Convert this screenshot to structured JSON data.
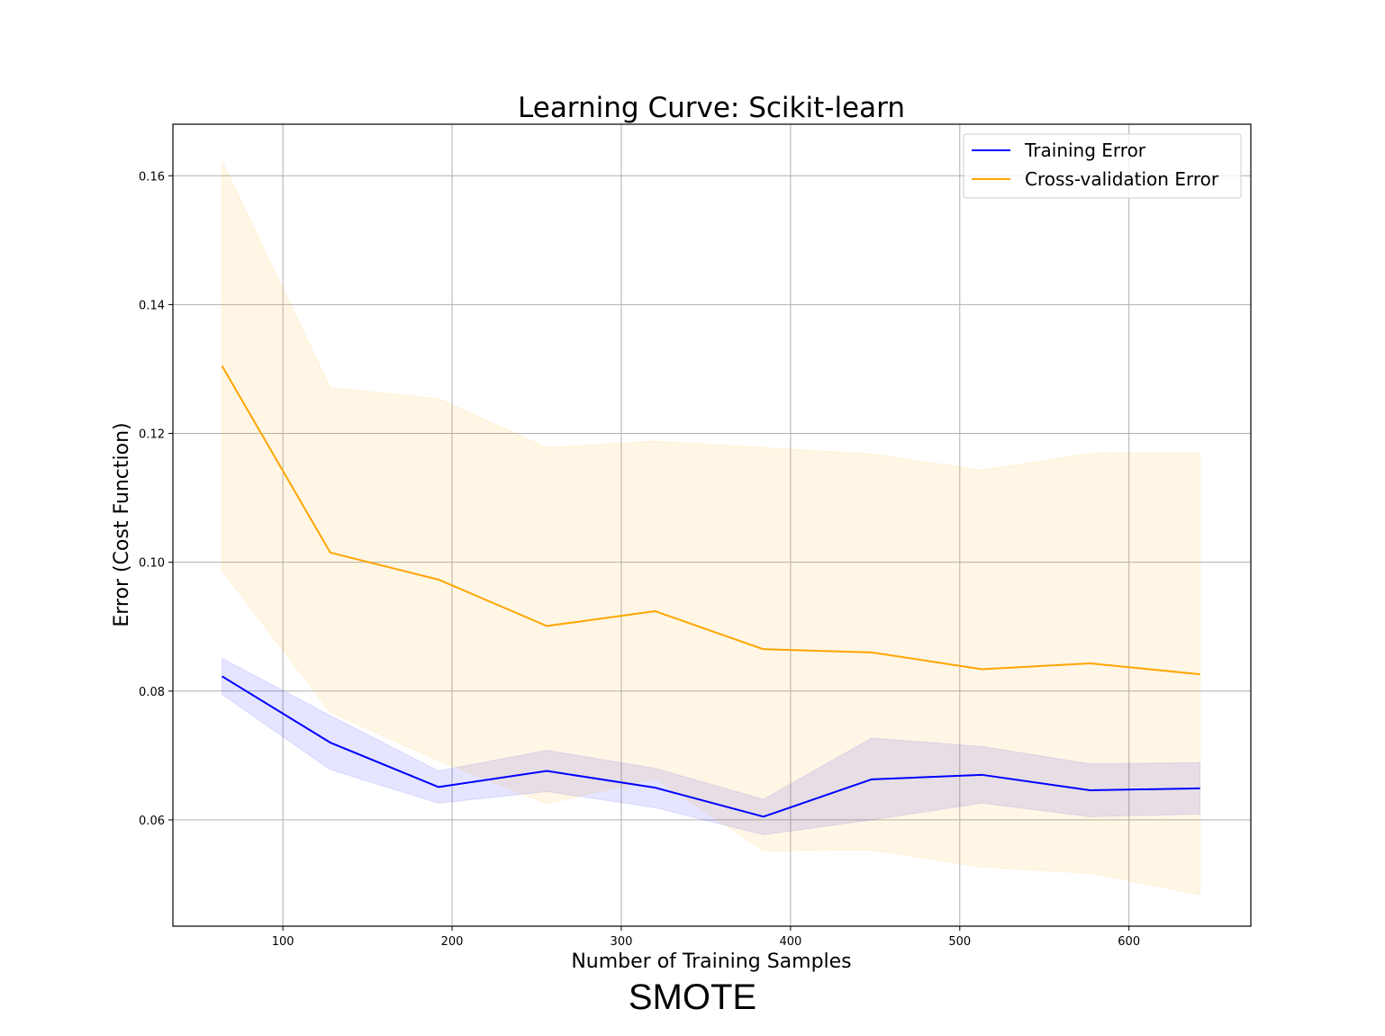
{
  "chart_data": {
    "type": "line",
    "title": "Learning Curve: Scikit-learn",
    "xlabel": "Number of Training Samples",
    "ylabel": "Error (Cost Function)",
    "xlim": [
      35,
      672
    ],
    "ylim": [
      0.0435,
      0.168
    ],
    "xticks": [
      100,
      200,
      300,
      400,
      500,
      600
    ],
    "xtick_labels": [
      "100",
      "200",
      "300",
      "400",
      "500",
      "600"
    ],
    "yticks": [
      0.06,
      0.08,
      0.1,
      0.12,
      0.14,
      0.16
    ],
    "ytick_labels": [
      "0.06",
      "0.08",
      "0.10",
      "0.12",
      "0.14",
      "0.16"
    ],
    "grid": true,
    "legend_position": "top-right",
    "x": [
      64,
      128,
      192,
      256,
      320,
      384,
      448,
      513,
      577,
      642
    ],
    "series": [
      {
        "name": "Training Error",
        "color": "#0000ff",
        "band_color": "#0000ff",
        "values": [
          0.0823,
          0.072,
          0.0651,
          0.0676,
          0.065,
          0.0605,
          0.0663,
          0.067,
          0.0646,
          0.0649
        ],
        "lower": [
          0.0795,
          0.0678,
          0.0626,
          0.0644,
          0.0619,
          0.0577,
          0.06,
          0.0626,
          0.0605,
          0.0609
        ],
        "upper": [
          0.0851,
          0.0762,
          0.0676,
          0.0708,
          0.068,
          0.0632,
          0.0727,
          0.0714,
          0.0687,
          0.0689
        ]
      },
      {
        "name": "Cross-validation Error",
        "color": "#ffa500",
        "band_color": "#ffa500",
        "values": [
          0.1305,
          0.1015,
          0.0973,
          0.0901,
          0.0924,
          0.0865,
          0.086,
          0.0834,
          0.0843,
          0.0826
        ],
        "lower": [
          0.0987,
          0.0767,
          0.0692,
          0.0625,
          0.0664,
          0.0552,
          0.0553,
          0.0527,
          0.0517,
          0.0484
        ],
        "upper": [
          0.1623,
          0.1271,
          0.1254,
          0.1178,
          0.1188,
          0.1178,
          0.1168,
          0.1143,
          0.1169,
          0.117
        ]
      }
    ]
  },
  "caption": "SMOTE"
}
